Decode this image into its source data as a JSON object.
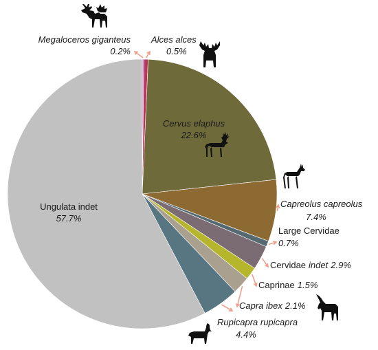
{
  "chart_data": {
    "type": "pie",
    "title": "",
    "start_angle_deg": 0,
    "direction": "clockwise",
    "slices": [
      {
        "label": "Megaloceros giganteus",
        "value": 0.2,
        "value_label": "0.2%",
        "color": "#c77dcf",
        "icon": "megaloceros-icon"
      },
      {
        "label": "Alces alces",
        "value": 0.5,
        "value_label": "0.5%",
        "color": "#b8345a",
        "icon": "moose-icon"
      },
      {
        "label": "Cervus elaphus",
        "value": 22.6,
        "value_label": "22.6%",
        "color": "#6e6a3a",
        "icon": "red-deer-icon"
      },
      {
        "label": "Capreolus capreolus",
        "value": 7.4,
        "value_label": "7.4%",
        "color": "#8c6a32",
        "icon": "roe-deer-icon"
      },
      {
        "label": "Large Cervidae",
        "value": 0.7,
        "value_label": "0.7%",
        "color": "#546a70",
        "icon": ""
      },
      {
        "label": "Cervidae",
        "label_suffix": "indet",
        "value": 2.9,
        "value_label": "2.9%",
        "color": "#7a6c72",
        "icon": ""
      },
      {
        "label": "Caprinae",
        "value": 1.5,
        "value_label": "1.5%",
        "color": "#b5b62b",
        "icon": ""
      },
      {
        "label": "Capra ibex",
        "value": 2.1,
        "value_label": "2.1%",
        "color": "#aaa08f",
        "icon": "ibex-icon"
      },
      {
        "label": "Rupicapra rupicapra",
        "value": 4.4,
        "value_label": "4.4%",
        "color": "#577682",
        "icon": "chamois-icon"
      },
      {
        "label": "Ungulata indet",
        "value": 57.7,
        "value_label": "57.7%",
        "color": "#c1c1c1",
        "icon": ""
      }
    ],
    "leader_line_color": "#f0a08a"
  }
}
